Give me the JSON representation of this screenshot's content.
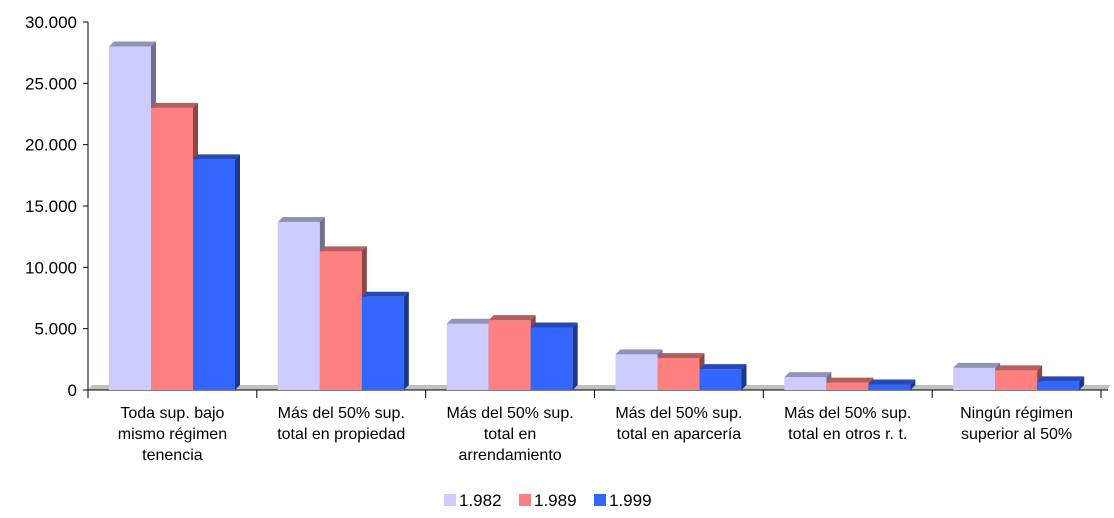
{
  "chart_data": {
    "type": "bar",
    "title": "",
    "xlabel": "",
    "ylabel": "",
    "ylim": [
      0,
      30000
    ],
    "yticks": [
      0,
      5000,
      10000,
      15000,
      20000,
      25000,
      30000
    ],
    "ytick_labels": [
      "0",
      "5.000",
      "10.000",
      "15.000",
      "20.000",
      "25.000",
      "30.000"
    ],
    "categories": [
      [
        "Toda sup. bajo",
        "mismo régimen",
        "tenencia"
      ],
      [
        "Más del 50% sup.",
        "total en propiedad"
      ],
      [
        "Más del 50% sup.",
        "total en",
        "arrendamiento"
      ],
      [
        "Más del 50% sup.",
        "total en aparcería"
      ],
      [
        "Más del 50% sup.",
        "total en otros r. t."
      ],
      [
        "Ningún régimen",
        "superior al 50%"
      ]
    ],
    "series": [
      {
        "name": "1.982",
        "color": "#ccccff",
        "values": [
          28000,
          13700,
          5400,
          2900,
          1050,
          1800
        ]
      },
      {
        "name": "1.989",
        "color": "#ff8080",
        "values": [
          23000,
          11300,
          5700,
          2600,
          600,
          1600
        ]
      },
      {
        "name": "1.999",
        "color": "#3366ff",
        "values": [
          18800,
          7600,
          5100,
          1700,
          450,
          700
        ]
      }
    ],
    "grid": false,
    "legend_position": "bottom",
    "style": "3d"
  }
}
